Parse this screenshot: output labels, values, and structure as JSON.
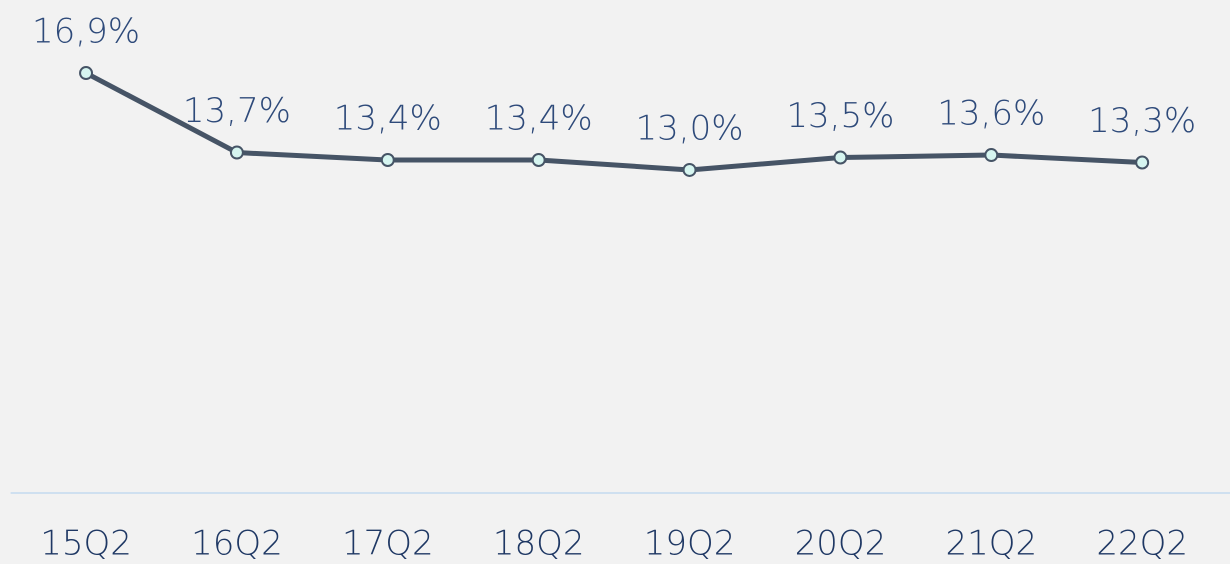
{
  "chart_data": {
    "type": "line",
    "categories": [
      "15Q2",
      "16Q2",
      "17Q2",
      "18Q2",
      "19Q2",
      "20Q2",
      "21Q2",
      "22Q2"
    ],
    "values": [
      16.9,
      13.7,
      13.4,
      13.4,
      13.0,
      13.5,
      13.6,
      13.3
    ],
    "value_labels": [
      "16,9%",
      "13,7%",
      "13,4%",
      "13,4%",
      "13,0%",
      "13,5%",
      "13,6%",
      "13,3%"
    ],
    "color": "#465466",
    "marker_color": "#d6f5f0",
    "ylim": [
      0,
      20
    ],
    "grid": false
  }
}
